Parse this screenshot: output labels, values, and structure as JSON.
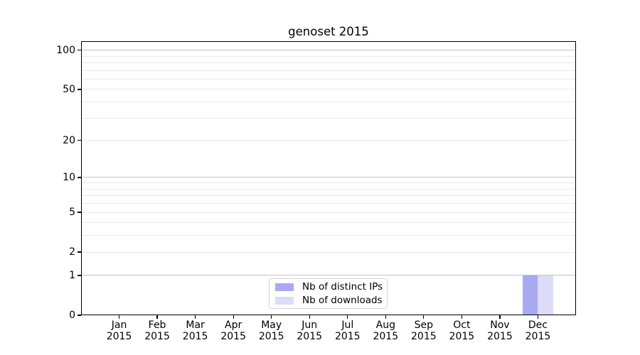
{
  "chart_data": {
    "type": "bar",
    "title": "genoset 2015",
    "categories": [
      "Jan",
      "Feb",
      "Mar",
      "Apr",
      "May",
      "Jun",
      "Jul",
      "Aug",
      "Sep",
      "Oct",
      "Nov",
      "Dec"
    ],
    "x_year_label": "2015",
    "y_tick_labels": [
      0,
      1,
      2,
      5,
      10,
      20,
      50,
      100
    ],
    "y_scale": "log10(value+1)",
    "ylim": [
      0,
      117
    ],
    "series": [
      {
        "name": "Nb of distinct IPs",
        "color": "#a9a9f2",
        "values": [
          0,
          0,
          0,
          0,
          0,
          0,
          0,
          0,
          0,
          0,
          0,
          1
        ]
      },
      {
        "name": "Nb of downloads",
        "color": "#dcdcf8",
        "values": [
          0,
          0,
          0,
          0,
          0,
          0,
          0,
          0,
          0,
          0,
          0,
          1
        ]
      }
    ],
    "grid": {
      "major_lines": [
        1,
        10,
        100
      ],
      "minor_lines": [
        2,
        3,
        4,
        5,
        6,
        7,
        8,
        9,
        20,
        30,
        40,
        50,
        60,
        70,
        80,
        90
      ],
      "major_color": "#c3c3c3",
      "minor_color": "#eaeaea"
    },
    "legend": {
      "position": "bottom-center"
    }
  }
}
